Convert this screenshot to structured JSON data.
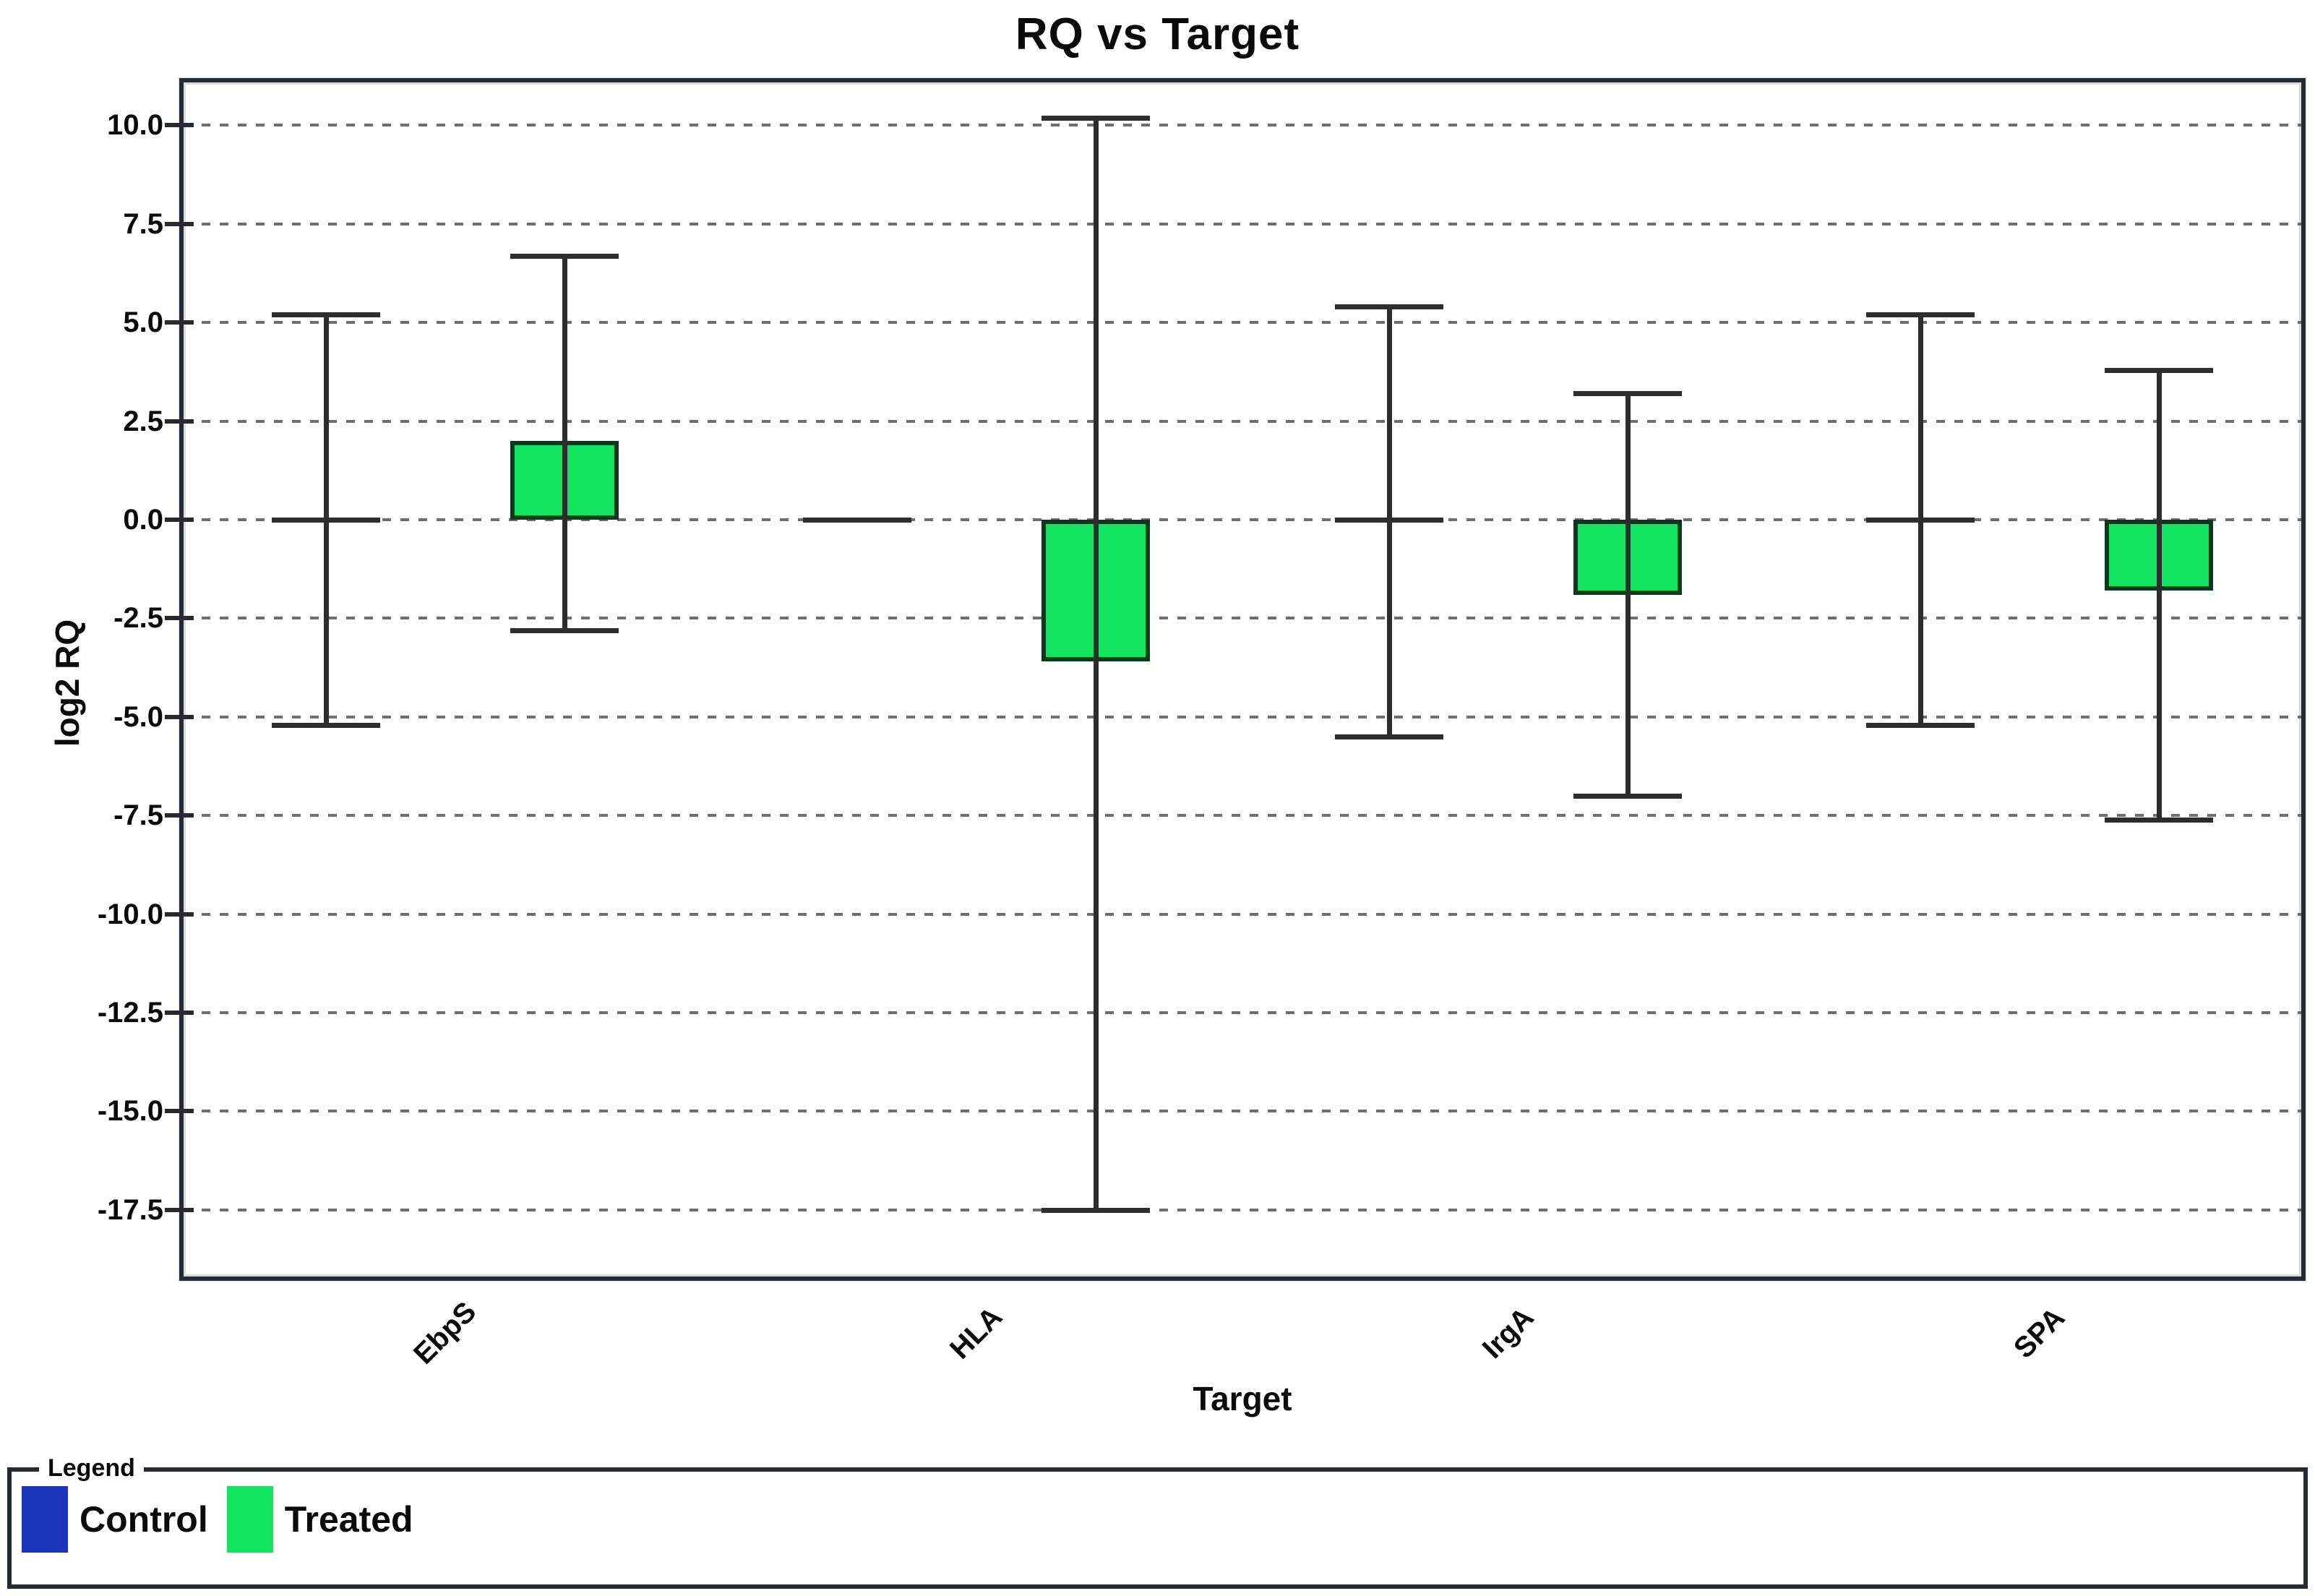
{
  "title": "RQ vs Target",
  "chart_data": {
    "type": "bar",
    "title": "RQ vs Target",
    "xlabel": "Target",
    "ylabel": "log2 RQ",
    "categories": [
      "EbpS",
      "HLA",
      "IrgA",
      "SPA"
    ],
    "series": [
      {
        "name": "Control",
        "color": "#1c35bd",
        "bar_style": "flat-line-at-zero",
        "values": [
          0,
          0,
          0,
          0
        ],
        "whisker_top": [
          5.2,
          null,
          5.4,
          5.2
        ],
        "whisker_bottom": [
          -5.2,
          null,
          -5.5,
          -5.2
        ]
      },
      {
        "name": "Treated",
        "color": "#12e45f",
        "bar_style": "filled",
        "values": [
          2.0,
          -3.6,
          -1.9,
          -1.8
        ],
        "whisker_top": [
          6.7,
          10.2,
          3.2,
          3.8
        ],
        "whisker_bottom": [
          -2.8,
          -17.5,
          -7.0,
          -7.6
        ]
      }
    ],
    "y_ticks": [
      10.0,
      7.5,
      5.0,
      2.5,
      0.0,
      -2.5,
      -5.0,
      -7.5,
      -10.0,
      -12.5,
      -15.0,
      -17.5
    ],
    "ylim": [
      -19.3,
      11.2
    ],
    "grid": "horizontal-dashed",
    "legend_position": "bottom",
    "colors": {
      "grid": "#6e6e6e",
      "whisker": "#2d2d2d",
      "plot_border": "#262b33",
      "bar_border": "#0a3a1d",
      "text": "#0a0a0a",
      "background": "#ffffff"
    }
  },
  "legend": {
    "label": "Legend",
    "items": [
      {
        "label": "Control",
        "color": "#1c35bd"
      },
      {
        "label": "Treated",
        "color": "#12e45f"
      }
    ]
  }
}
